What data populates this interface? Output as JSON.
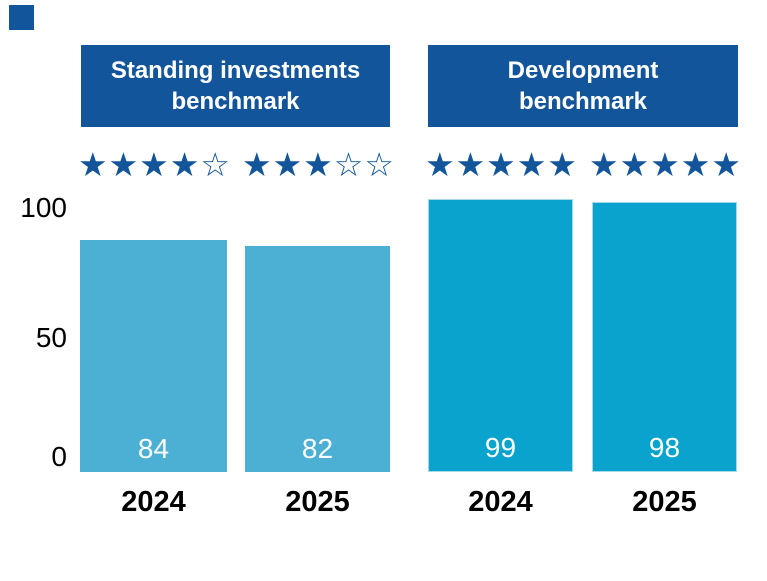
{
  "chart_data": {
    "type": "bar",
    "ylim": [
      0,
      100
    ],
    "grid": false,
    "legend": false,
    "y_ticks": [
      {
        "label": "100",
        "value": 100
      },
      {
        "label": "50",
        "value": 50
      },
      {
        "label": "0",
        "value": 0
      }
    ],
    "groups": [
      {
        "title_lines": [
          "Standing investments",
          "benchmark"
        ],
        "title": "Standing investments benchmark",
        "bar_color": "#4cb0d5",
        "bars": [
          {
            "year": "2024",
            "value": 84,
            "stars_filled": 4,
            "stars_total": 5,
            "stars_text": "★★★★☆"
          },
          {
            "year": "2025",
            "value": 82,
            "stars_filled": 3,
            "stars_total": 5,
            "stars_text": "★★★☆☆"
          }
        ]
      },
      {
        "title_lines": [
          "Development",
          "benchmark"
        ],
        "title": "Development benchmark",
        "bar_color": "#0aa3ce",
        "bars": [
          {
            "year": "2024",
            "value": 99,
            "stars_filled": 5,
            "stars_total": 5,
            "stars_text": "★★★★★"
          },
          {
            "year": "2025",
            "value": 98,
            "stars_filled": 5,
            "stars_total": 5,
            "stars_text": "★★★★★"
          }
        ]
      }
    ],
    "colors": {
      "header_bg": "#12559a",
      "star": "#12559a",
      "bar_light": "#4cb0d5",
      "bar_dark": "#0aa3ce",
      "value_text": "#ffffff",
      "axis_text": "#000000"
    }
  }
}
